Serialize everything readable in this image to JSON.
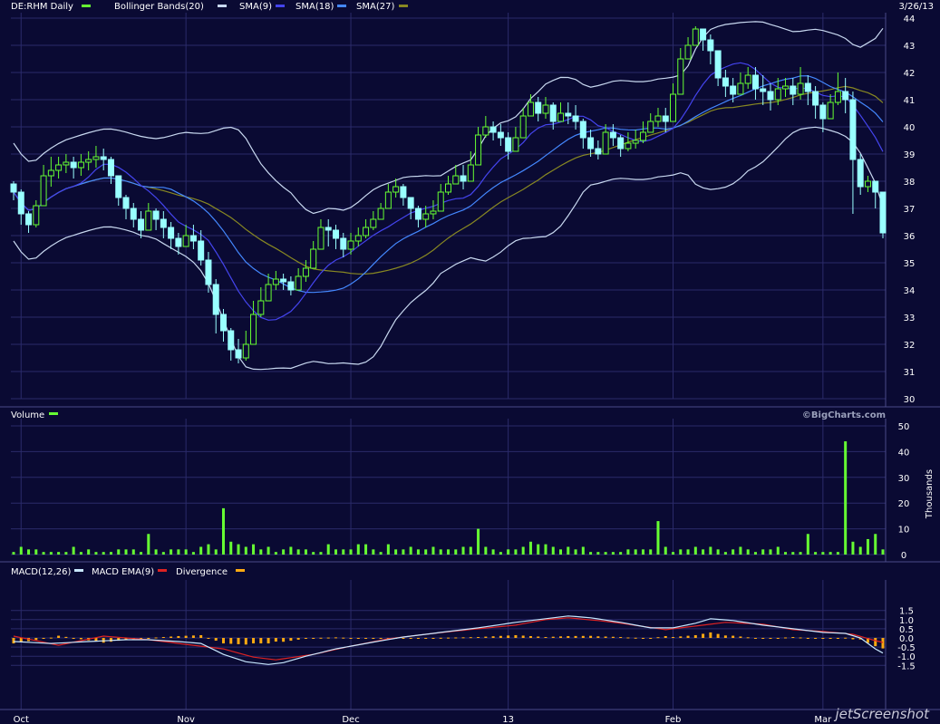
{
  "header": {
    "symbol": "DE:RHM Daily",
    "ind_bb": "Bollinger Bands(20)",
    "ind_sma9": "SMA(9)",
    "ind_sma18": "SMA(18)",
    "ind_sma27": "SMA(27)",
    "date": "3/26/13"
  },
  "volume_panel": {
    "label": "Volume",
    "credit": "©BigCharts.com",
    "unit": "Thousands"
  },
  "macd_panel": {
    "macd": "MACD(12,26)",
    "ema": "MACD EMA(9)",
    "div": "Divergence"
  },
  "watermark": "jetScreenshot",
  "colors": {
    "background": "#0a0a33",
    "grid": "#2b2b6a",
    "up": "#66ff33",
    "down": "#99ffff",
    "bollinger": "#c8d8f0",
    "sma9": "#4444ee",
    "sma18": "#4488ff",
    "sma27": "#888822",
    "volume": "#66ff33",
    "macd": "#c8e8ff",
    "macd_ema": "#dd2222",
    "divergence": "#ffaa11",
    "text": "#ffffff"
  },
  "chart_data": {
    "type": "candlestick",
    "x_month_labels": [
      "Oct",
      "Nov",
      "Dec",
      "13",
      "Feb",
      "Mar"
    ],
    "x_month_start_index": [
      1,
      23,
      45,
      66,
      88,
      108
    ],
    "price_axis": {
      "ylim": [
        30,
        44
      ],
      "ticks": [
        30,
        31,
        32,
        33,
        34,
        35,
        36,
        37,
        38,
        39,
        40,
        41,
        42,
        43,
        44
      ]
    },
    "close": [
      37.6,
      36.8,
      36.4,
      37.1,
      38.2,
      38.4,
      38.6,
      38.7,
      38.5,
      38.7,
      38.8,
      38.9,
      38.8,
      38.2,
      37.4,
      37.0,
      36.6,
      36.2,
      36.9,
      36.6,
      36.3,
      35.9,
      35.6,
      36.0,
      35.8,
      35.1,
      34.2,
      33.1,
      32.5,
      31.8,
      31.5,
      32.0,
      33.1,
      33.6,
      34.2,
      34.4,
      34.3,
      34.0,
      34.5,
      34.8,
      35.5,
      36.3,
      36.2,
      35.9,
      35.5,
      35.8,
      36.0,
      36.3,
      36.6,
      37.0,
      37.6,
      37.8,
      37.4,
      37.0,
      36.6,
      36.8,
      36.9,
      37.6,
      37.9,
      38.2,
      38.0,
      38.6,
      39.7,
      40.0,
      39.8,
      39.6,
      39.1,
      39.6,
      40.4,
      40.9,
      40.5,
      40.8,
      40.2,
      40.5,
      40.4,
      40.2,
      39.6,
      39.2,
      39.0,
      39.8,
      39.6,
      39.2,
      39.4,
      39.5,
      39.8,
      40.2,
      40.4,
      40.2,
      41.2,
      42.5,
      43.0,
      43.6,
      43.2,
      42.8,
      41.8,
      41.5,
      41.2,
      41.6,
      41.9,
      41.4,
      41.3,
      41.0,
      41.4,
      41.5,
      41.2,
      41.6,
      41.3,
      40.8,
      40.3,
      40.9,
      41.3,
      41.0,
      38.8,
      37.8,
      38.0,
      37.6,
      36.1
    ],
    "high": [
      38.0,
      37.7,
      36.9,
      37.3,
      38.6,
      38.9,
      38.9,
      39.0,
      38.9,
      39.0,
      39.1,
      39.3,
      39.2,
      38.9,
      38.0,
      37.5,
      37.2,
      36.9,
      37.2,
      37.0,
      36.9,
      36.5,
      36.1,
      36.4,
      36.4,
      36.2,
      35.4,
      34.4,
      33.3,
      32.6,
      32.2,
      32.5,
      33.6,
      34.1,
      34.6,
      34.7,
      34.6,
      34.5,
      34.8,
      35.1,
      35.8,
      36.6,
      36.6,
      36.4,
      36.1,
      36.1,
      36.3,
      36.6,
      36.9,
      37.2,
      37.9,
      38.1,
      37.9,
      37.4,
      37.1,
      37.1,
      37.3,
      37.9,
      38.2,
      38.6,
      38.6,
      39.1,
      40.0,
      40.4,
      40.2,
      40.1,
      39.8,
      40.0,
      40.7,
      41.2,
      41.1,
      41.1,
      40.9,
      40.9,
      40.9,
      40.8,
      40.3,
      39.9,
      39.5,
      40.1,
      40.1,
      39.7,
      39.8,
      39.9,
      40.2,
      40.5,
      40.7,
      40.7,
      41.6,
      42.9,
      43.3,
      43.7,
      43.6,
      43.4,
      42.4,
      42.1,
      41.8,
      42.0,
      42.2,
      42.2,
      41.9,
      41.6,
      41.8,
      41.8,
      41.8,
      42.2,
      41.9,
      41.5,
      40.9,
      41.2,
      42.0,
      41.8,
      41.3,
      39.0,
      38.2,
      38.0,
      37.0
    ],
    "low": [
      37.3,
      36.4,
      36.1,
      36.3,
      37.1,
      37.8,
      38.1,
      38.3,
      38.1,
      38.2,
      38.4,
      38.5,
      38.4,
      37.9,
      37.1,
      36.6,
      36.3,
      35.9,
      36.3,
      36.2,
      35.9,
      35.5,
      35.3,
      35.6,
      35.5,
      34.9,
      33.9,
      32.4,
      32.1,
      31.4,
      31.3,
      31.4,
      32.4,
      33.0,
      33.8,
      34.0,
      34.0,
      33.8,
      34.2,
      34.3,
      35.0,
      35.8,
      35.6,
      35.5,
      35.2,
      35.3,
      35.6,
      35.9,
      36.2,
      36.6,
      37.2,
      37.4,
      37.1,
      36.6,
      36.3,
      36.3,
      36.6,
      37.2,
      37.5,
      37.9,
      37.7,
      38.1,
      39.0,
      39.6,
      39.5,
      39.3,
      38.8,
      39.2,
      39.9,
      40.4,
      40.2,
      40.3,
      39.9,
      40.2,
      40.1,
      39.9,
      39.2,
      38.9,
      38.8,
      39.2,
      39.3,
      38.9,
      39.1,
      39.2,
      39.4,
      39.8,
      40.0,
      39.8,
      40.5,
      41.6,
      42.5,
      43.0,
      42.8,
      42.3,
      41.5,
      41.1,
      40.9,
      41.2,
      41.4,
      41.0,
      40.8,
      40.6,
      40.8,
      41.1,
      40.8,
      41.0,
      40.8,
      40.3,
      39.8,
      40.3,
      40.8,
      40.5,
      36.8,
      37.5,
      37.6,
      37.0,
      35.9
    ],
    "volume_axis": {
      "ylim": [
        0,
        50
      ],
      "ticks": [
        0,
        10,
        20,
        30,
        40,
        50
      ],
      "unit": "Thousands"
    },
    "volume": [
      1,
      3,
      2,
      2,
      1,
      1,
      1,
      1,
      3,
      1,
      2,
      1,
      1,
      1,
      2,
      2,
      2,
      1,
      8,
      2,
      1,
      2,
      2,
      2,
      1,
      3,
      4,
      2,
      18,
      5,
      4,
      3,
      4,
      2,
      3,
      1,
      2,
      3,
      2,
      2,
      1,
      1,
      4,
      2,
      2,
      2,
      4,
      4,
      2,
      1,
      4,
      2,
      2,
      3,
      2,
      2,
      3,
      2,
      2,
      2,
      3,
      3,
      10,
      3,
      2,
      1,
      2,
      2,
      3,
      5,
      4,
      4,
      3,
      2,
      3,
      2,
      3,
      1,
      1,
      1,
      1,
      1,
      2,
      2,
      2,
      2,
      13,
      3,
      1,
      2,
      2,
      3,
      2,
      3,
      2,
      1,
      2,
      3,
      2,
      1,
      2,
      2,
      3,
      1,
      1,
      1,
      8,
      1,
      1,
      1,
      1,
      44,
      5,
      3,
      6,
      8,
      2
    ],
    "macd_axis": {
      "ylim": [
        -1.5,
        1.5
      ],
      "ticks": [
        -1.5,
        -1.0,
        -0.5,
        0.0,
        0.5,
        1.0,
        1.5
      ]
    },
    "macd_keyframes": [
      [
        0,
        -0.2
      ],
      [
        5,
        -0.3
      ],
      [
        10,
        -0.2
      ],
      [
        15,
        -0.1
      ],
      [
        18,
        -0.1
      ],
      [
        22,
        -0.2
      ],
      [
        25,
        -0.3
      ],
      [
        28,
        -0.9
      ],
      [
        31,
        -1.3
      ],
      [
        34,
        -1.45
      ],
      [
        36,
        -1.35
      ],
      [
        39,
        -1.0
      ],
      [
        43,
        -0.6
      ],
      [
        47,
        -0.3
      ],
      [
        52,
        0.05
      ],
      [
        57,
        0.3
      ],
      [
        62,
        0.55
      ],
      [
        67,
        0.85
      ],
      [
        71,
        1.05
      ],
      [
        74,
        1.2
      ],
      [
        77,
        1.1
      ],
      [
        81,
        0.85
      ],
      [
        85,
        0.55
      ],
      [
        88,
        0.55
      ],
      [
        91,
        0.8
      ],
      [
        93,
        1.05
      ],
      [
        96,
        0.95
      ],
      [
        100,
        0.7
      ],
      [
        104,
        0.5
      ],
      [
        108,
        0.3
      ],
      [
        111,
        0.25
      ],
      [
        113,
        0.0
      ],
      [
        115,
        -0.6
      ],
      [
        117,
        -1.05
      ]
    ],
    "ema_keyframes": [
      [
        0,
        0.1
      ],
      [
        6,
        -0.4
      ],
      [
        12,
        0.1
      ],
      [
        18,
        -0.1
      ],
      [
        24,
        -0.4
      ],
      [
        28,
        -0.6
      ],
      [
        32,
        -1.05
      ],
      [
        35,
        -1.2
      ],
      [
        40,
        -0.9
      ],
      [
        45,
        -0.45
      ],
      [
        50,
        -0.05
      ],
      [
        56,
        0.25
      ],
      [
        62,
        0.5
      ],
      [
        67,
        0.7
      ],
      [
        71,
        1.0
      ],
      [
        74,
        1.1
      ],
      [
        78,
        0.95
      ],
      [
        82,
        0.75
      ],
      [
        87,
        0.45
      ],
      [
        90,
        0.6
      ],
      [
        95,
        0.85
      ],
      [
        100,
        0.75
      ],
      [
        104,
        0.45
      ],
      [
        108,
        0.35
      ],
      [
        112,
        0.2
      ],
      [
        115,
        -0.15
      ],
      [
        117,
        -0.35
      ]
    ]
  }
}
